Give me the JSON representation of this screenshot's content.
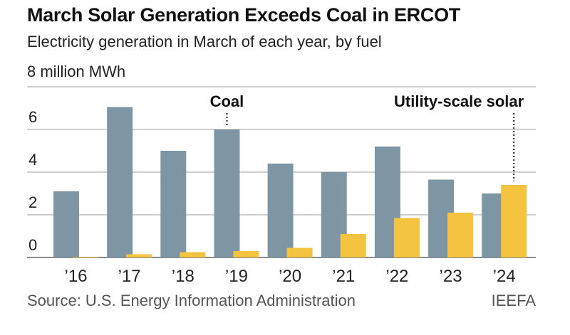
{
  "header": {
    "title": "March Solar Generation Exceeds Coal in ERCOT",
    "subtitle": "Electricity generation in March of each year, by fuel",
    "unit_label": "8 million MWh"
  },
  "footer": {
    "source": "Source: U.S. Energy Information Administration",
    "brand": "IEEFA"
  },
  "colors": {
    "coal": "#7e96a4",
    "solar": "#f4c33f",
    "grid": "#bdbdbd",
    "axis": "#8a8a8a"
  },
  "chart_data": {
    "type": "bar",
    "title": "March Solar Generation Exceeds Coal in ERCOT",
    "subtitle": "Electricity generation in March of each year, by fuel",
    "xlabel": "",
    "ylabel": "million MWh",
    "ylim": [
      0,
      8
    ],
    "yticks": [
      0,
      2,
      4,
      6,
      8
    ],
    "ytick_labels": [
      "0",
      "2",
      "4",
      "6",
      "8 million MWh"
    ],
    "grid": true,
    "categories": [
      "'16",
      "'17",
      "'18",
      "'19",
      "'20",
      "'21",
      "'22",
      "'23",
      "'24"
    ],
    "series": [
      {
        "name": "Coal",
        "values": [
          3.1,
          7.05,
          5.0,
          6.0,
          4.4,
          4.0,
          5.2,
          3.65,
          3.0
        ]
      },
      {
        "name": "Utility-scale solar",
        "values": [
          0.03,
          0.15,
          0.25,
          0.3,
          0.45,
          1.1,
          1.85,
          2.1,
          3.4
        ]
      }
    ],
    "annotations": [
      {
        "text": "Coal",
        "series": "Coal",
        "category": "'19"
      },
      {
        "text": "Utility-scale solar",
        "series": "Utility-scale solar",
        "category": "'24"
      }
    ],
    "legend": "none (direct labels)",
    "source": "Source: U.S. Energy Information Administration"
  }
}
